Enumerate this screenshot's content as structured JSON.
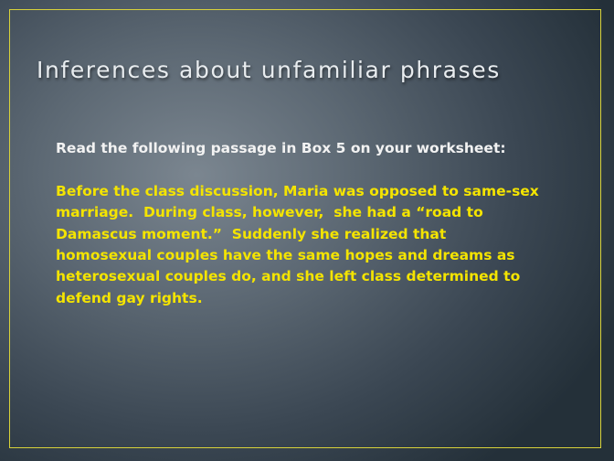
{
  "slide": {
    "title": "Inferences about unfamiliar phrases",
    "instruction": "Read the following passage in Box 5 on your worksheet:",
    "passage_lines": [
      "Before the class discussion, Maria was opposed to same-sex",
      "marriage.  During class, however,  she had a “road to",
      "Damascus moment.”  Suddenly she realized that",
      "homosexual couples have the same hopes and dreams as",
      "heterosexual couples do, and she left class determined to",
      "defend gay rights."
    ]
  },
  "colors": {
    "frame": "#d8d23a",
    "title": "#e8ecef",
    "instruction": "#f2f2f2",
    "passage": "#f4e400"
  }
}
